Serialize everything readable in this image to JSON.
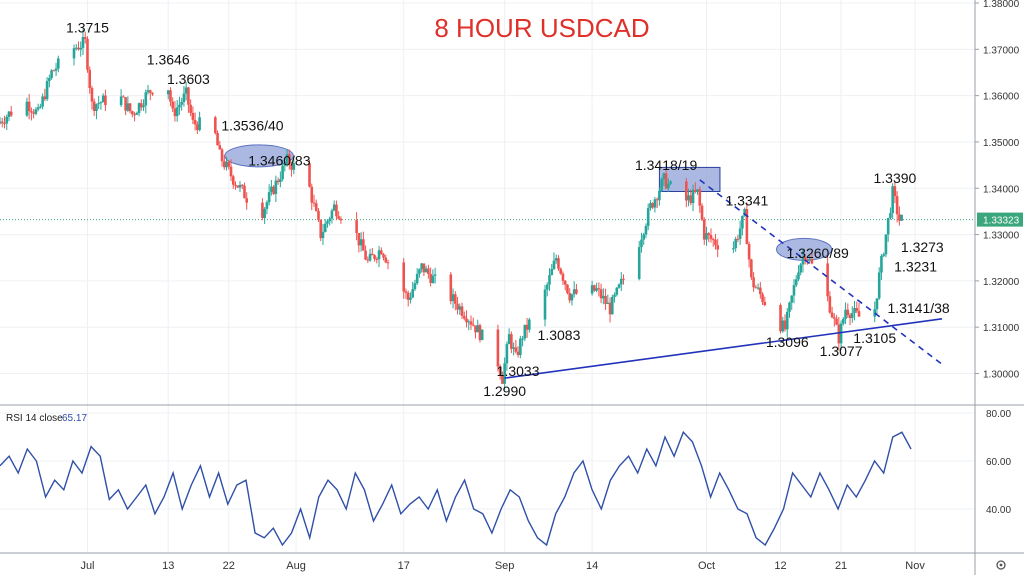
{
  "chart_data": [
    {
      "type": "candlestick",
      "title": "8 HOUR USDCAD",
      "ylim": [
        1.29,
        1.38
      ],
      "y_ticks": [
        "1.38000",
        "1.37000",
        "1.36000",
        "1.35000",
        "1.34000",
        "1.33000",
        "1.32000",
        "1.31000",
        "1.30000"
      ],
      "x_ticks": [
        "Jul",
        "13",
        "22",
        "Aug",
        "17",
        "Sep",
        "14",
        "Oct",
        "12",
        "21",
        "Nov"
      ],
      "last_price": "1.33323",
      "grid": true,
      "price_path": [
        [
          "Jun 18",
          1.354
        ],
        [
          "Jun 22",
          1.359
        ],
        [
          "Jun 24",
          1.356
        ],
        [
          "Jun 26",
          1.365
        ],
        [
          "Jun 29",
          1.37
        ],
        [
          "Jul 1",
          1.3715
        ],
        [
          "Jul 2",
          1.358
        ],
        [
          "Jul 6",
          1.36
        ],
        [
          "Jul 8",
          1.356
        ],
        [
          "Jul 10",
          1.36
        ],
        [
          "Jul 13",
          1.3646
        ],
        [
          "Jul 14",
          1.356
        ],
        [
          "Jul 16",
          1.3603
        ],
        [
          "Jul 17",
          1.354
        ],
        [
          "Jul 20",
          1.3536
        ],
        [
          "Jul 21",
          1.347
        ],
        [
          "Jul 23",
          1.342
        ],
        [
          "Jul 27",
          1.334
        ],
        [
          "Jul 29",
          1.34
        ],
        [
          "Jul 31",
          1.346
        ],
        [
          "Aug 3",
          1.342
        ],
        [
          "Aug 5",
          1.33
        ],
        [
          "Aug 7",
          1.336
        ],
        [
          "Aug 10",
          1.331
        ],
        [
          "Aug 12",
          1.324
        ],
        [
          "Aug 14",
          1.327
        ],
        [
          "Aug 18",
          1.316
        ],
        [
          "Aug 20",
          1.323
        ],
        [
          "Aug 24",
          1.317
        ],
        [
          "Aug 27",
          1.312
        ],
        [
          "Aug 31",
          1.304
        ],
        [
          "Sep 1",
          1.299
        ],
        [
          "Sep 2",
          1.308
        ],
        [
          "Sep 3",
          1.3033
        ],
        [
          "Sep 4",
          1.3083
        ],
        [
          "Sep 7",
          1.316
        ],
        [
          "Sep 9",
          1.325
        ],
        [
          "Sep 11",
          1.317
        ],
        [
          "Sep 15",
          1.318
        ],
        [
          "Sep 17",
          1.314
        ],
        [
          "Sep 21",
          1.327
        ],
        [
          "Sep 23",
          1.336
        ],
        [
          "Sep 25",
          1.3418
        ],
        [
          "Sep 28",
          1.337
        ],
        [
          "Sep 30",
          1.339
        ],
        [
          "Oct 1",
          1.33
        ],
        [
          "Oct 5",
          1.326
        ],
        [
          "Oct 7",
          1.3341
        ],
        [
          "Oct 8",
          1.32
        ],
        [
          "Oct 12",
          1.311
        ],
        [
          "Oct 13",
          1.3096
        ],
        [
          "Oct 15",
          1.323
        ],
        [
          "Oct 16",
          1.326
        ],
        [
          "Oct 19",
          1.318
        ],
        [
          "Oct 21",
          1.3077
        ],
        [
          "Oct 22",
          1.314
        ],
        [
          "Oct 26",
          1.3105
        ],
        [
          "Oct 27",
          1.321
        ],
        [
          "Oct 28",
          1.33
        ],
        [
          "Oct 29",
          1.339
        ],
        [
          "Oct 30",
          1.3332
        ]
      ],
      "annotations": [
        {
          "text": "1.3715",
          "date": "Jul 1",
          "price": 1.3715,
          "anchor": "above"
        },
        {
          "text": "1.3646",
          "date": "Jul 13",
          "price": 1.3646,
          "anchor": "above"
        },
        {
          "text": "1.3603",
          "date": "Jul 16",
          "price": 1.3603,
          "anchor": "above"
        },
        {
          "text": "1.3536/40",
          "date": "Jul 20",
          "price": 1.3536,
          "anchor": "right"
        },
        {
          "text": "1.3460/83",
          "date": "Jul 24",
          "price": 1.346,
          "anchor": "right"
        },
        {
          "text": "1.2990",
          "date": "Sep 1",
          "price": 1.299,
          "anchor": "below"
        },
        {
          "text": "1.3033",
          "date": "Sep 3",
          "price": 1.3033,
          "anchor": "below"
        },
        {
          "text": "1.3083",
          "date": "Sep 5",
          "price": 1.3083,
          "anchor": "right"
        },
        {
          "text": "1.3418/19",
          "date": "Sep 25",
          "price": 1.3418,
          "anchor": "above"
        },
        {
          "text": "1.3341",
          "date": "Oct 7",
          "price": 1.3341,
          "anchor": "above"
        },
        {
          "text": "1.3260/89",
          "date": "Oct 12",
          "price": 1.326,
          "anchor": "right"
        },
        {
          "text": "1.3096",
          "date": "Oct 13",
          "price": 1.3096,
          "anchor": "below"
        },
        {
          "text": "1.3077",
          "date": "Oct 21",
          "price": 1.3077,
          "anchor": "below"
        },
        {
          "text": "1.3105",
          "date": "Oct 26",
          "price": 1.3105,
          "anchor": "below"
        },
        {
          "text": "1.3141/38",
          "date": "Oct 27",
          "price": 1.3141,
          "anchor": "right"
        },
        {
          "text": "1.3231",
          "date": "Oct 28",
          "price": 1.3231,
          "anchor": "right"
        },
        {
          "text": "1.3273",
          "date": "Oct 29",
          "price": 1.3273,
          "anchor": "right"
        },
        {
          "text": "1.3390",
          "date": "Oct 29",
          "price": 1.339,
          "anchor": "above"
        }
      ],
      "zones": [
        {
          "shape": "ellipse",
          "from": "Jul 22",
          "to": "Jul 31",
          "price": 1.347
        },
        {
          "shape": "rectangle",
          "from": "Sep 24",
          "to": "Oct 3",
          "low": 1.3393,
          "high": 1.3445
        },
        {
          "shape": "ellipse",
          "from": "Oct 12",
          "to": "Oct 19",
          "price": 1.3268
        }
      ],
      "trendlines": [
        {
          "style": "solid",
          "color": "#2233bb",
          "from": [
            "Sep 1",
            1.299
          ],
          "to": [
            "Nov 5",
            1.3118
          ]
        },
        {
          "style": "dashed",
          "color": "#2233bb",
          "from": [
            "Sep 30",
            1.3418
          ],
          "to": [
            "Nov 5",
            1.302
          ]
        }
      ]
    },
    {
      "type": "line",
      "label": "RSI 14 close",
      "value_label": "65.17",
      "ylim": [
        20,
        85
      ],
      "y_ticks": [
        "80.00",
        "60.00",
        "40.00"
      ],
      "series": [
        {
          "values": [
            58,
            62,
            55,
            65,
            60,
            45,
            52,
            48,
            60,
            55,
            66,
            62,
            44,
            48,
            40,
            45,
            50,
            38,
            45,
            55,
            40,
            50,
            58,
            45,
            55,
            42,
            50,
            52,
            30,
            28,
            32,
            25,
            30,
            40,
            28,
            45,
            52,
            48,
            40,
            55,
            48,
            35,
            42,
            50,
            38,
            42,
            45,
            40,
            48,
            35,
            45,
            52,
            40,
            38,
            30,
            40,
            48,
            45,
            35,
            28,
            25,
            38,
            45,
            55,
            60,
            48,
            40,
            52,
            58,
            62,
            55,
            65,
            58,
            70,
            62,
            72,
            68,
            58,
            45,
            55,
            48,
            40,
            38,
            28,
            25,
            32,
            40,
            55,
            50,
            45,
            55,
            48,
            40,
            50,
            45,
            52,
            60,
            55,
            70,
            72,
            65
          ]
        }
      ]
    }
  ]
}
